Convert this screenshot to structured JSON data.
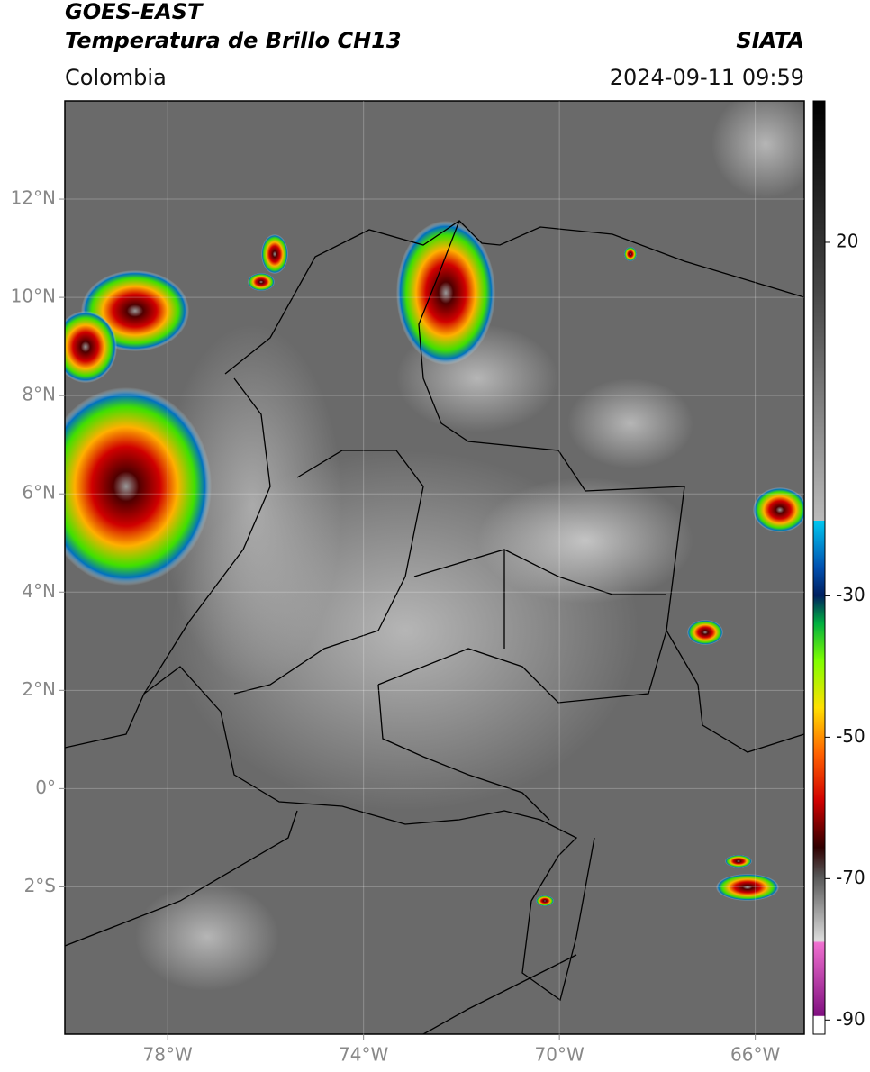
{
  "header": {
    "title": "GOES-EAST",
    "subtitle": "Temperatura de Brillo CH13",
    "agency": "SIATA",
    "region": "Colombia",
    "datetime": "2024-09-11 09:59"
  },
  "map": {
    "lonlim": [
      -80.1,
      -65
    ],
    "latlim": [
      -5,
      14
    ],
    "lonticks": [
      {
        "value": -78,
        "label": "78°W"
      },
      {
        "value": -74,
        "label": "74°W"
      },
      {
        "value": -70,
        "label": "70°W"
      },
      {
        "value": -66,
        "label": "66°W"
      }
    ],
    "latticks": [
      {
        "value": 12,
        "label": "12°N"
      },
      {
        "value": 10,
        "label": "10°N"
      },
      {
        "value": 8,
        "label": "8°N"
      },
      {
        "value": 6,
        "label": "6°N"
      },
      {
        "value": 4,
        "label": "4°N"
      },
      {
        "value": 2,
        "label": "2°N"
      },
      {
        "value": 0,
        "label": "0°"
      },
      {
        "value": -2,
        "label": "2°S"
      }
    ],
    "grid": true
  },
  "colorbar": {
    "lim": [
      -92,
      40
    ],
    "ticks": [
      20,
      -30,
      -50,
      -70,
      -90
    ]
  }
}
